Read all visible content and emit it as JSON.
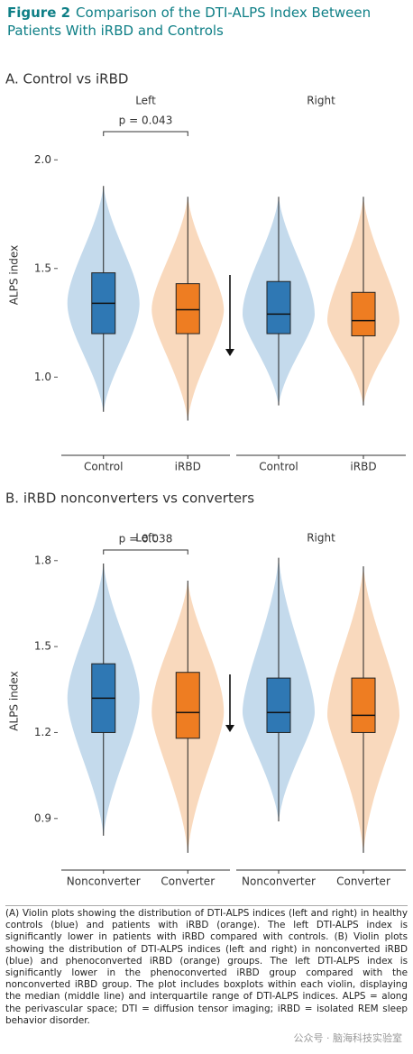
{
  "figure_label": "Figure 2",
  "figure_title": "Comparison of the DTI-ALPS Index Between Patients With iRBD and Controls",
  "caption": "(A) Violin plots showing the distribution of DTI-ALPS indices (left and right) in healthy controls (blue) and patients with iRBD (orange). The left DTI-ALPS index is significantly lower in patients with iRBD compared with controls. (B) Violin plots showing the distribution of DTI-ALPS indices (left and right) in nonconverted iRBD (blue) and phenoconverted iRBD (orange) groups. The left DTI-ALPS index is significantly lower in the phenoconverted iRBD group compared with the nonconverted iRBD group. The plot includes boxplots within each violin, displaying the median (middle line) and interquartile range of DTI-ALPS indices. ALPS = along the perivascular space; DTI = diffusion tensor imaging; iRBD = isolated REM sleep behavior disorder.",
  "watermark": "公众号 · 脑海科技实验室",
  "chart_data": [
    {
      "type": "violin",
      "title": "A. Control vs iRBD",
      "y_label": "ALPS index",
      "ylim": [
        0.64,
        2.3
      ],
      "yticks": [
        {
          "value": 1,
          "label": "1.0"
        },
        {
          "value": 1.5,
          "label": "1.5"
        },
        {
          "value": 2,
          "label": "2.0"
        }
      ],
      "facets": [
        {
          "name": "Left",
          "annotation": "p = 0.043",
          "groups": [
            {
              "name": "Control",
              "color": "#2f78b4",
              "violin_color": "#bed6ea",
              "whisker_low": 0.84,
              "q1": 1.2,
              "median": 1.34,
              "q3": 1.48,
              "whisker_high": 1.88
            },
            {
              "name": "iRBD",
              "color": "#ee7d22",
              "violin_color": "#f8d5b6",
              "whisker_low": 0.8,
              "q1": 1.2,
              "median": 1.31,
              "q3": 1.43,
              "whisker_high": 1.83
            }
          ]
        },
        {
          "name": "Right",
          "groups": [
            {
              "name": "Control",
              "color": "#2f78b4",
              "violin_color": "#bed6ea",
              "whisker_low": 0.87,
              "q1": 1.2,
              "median": 1.29,
              "q3": 1.44,
              "whisker_high": 1.83
            },
            {
              "name": "iRBD",
              "color": "#ee7d22",
              "violin_color": "#f8d5b6",
              "whisker_low": 0.87,
              "q1": 1.19,
              "median": 1.26,
              "q3": 1.39,
              "whisker_high": 1.83
            }
          ]
        }
      ]
    },
    {
      "type": "violin",
      "title": "B. iRBD nonconverters vs converters",
      "y_label": "ALPS index",
      "ylim": [
        0.72,
        1.9
      ],
      "yticks": [
        0.9,
        1.2,
        1.5,
        1.8
      ],
      "facets": [
        {
          "name": "Left",
          "annotation": "p = 0.038",
          "groups": [
            {
              "name": "Nonconverter",
              "color": "#2f78b4",
              "violin_color": "#bed6ea",
              "whisker_low": 0.84,
              "q1": 1.2,
              "median": 1.32,
              "q3": 1.44,
              "whisker_high": 1.79
            },
            {
              "name": "Converter",
              "color": "#ee7d22",
              "violin_color": "#f8d5b6",
              "whisker_low": 0.78,
              "q1": 1.18,
              "median": 1.27,
              "q3": 1.41,
              "whisker_high": 1.73
            }
          ]
        },
        {
          "name": "Right",
          "groups": [
            {
              "name": "Nonconverter",
              "color": "#2f78b4",
              "violin_color": "#bed6ea",
              "whisker_low": 0.89,
              "q1": 1.2,
              "median": 1.27,
              "q3": 1.39,
              "whisker_high": 1.81
            },
            {
              "name": "Converter",
              "color": "#ee7d22",
              "violin_color": "#f8d5b6",
              "whisker_low": 0.78,
              "q1": 1.2,
              "median": 1.26,
              "q3": 1.39,
              "whisker_high": 1.78
            }
          ]
        }
      ]
    }
  ]
}
